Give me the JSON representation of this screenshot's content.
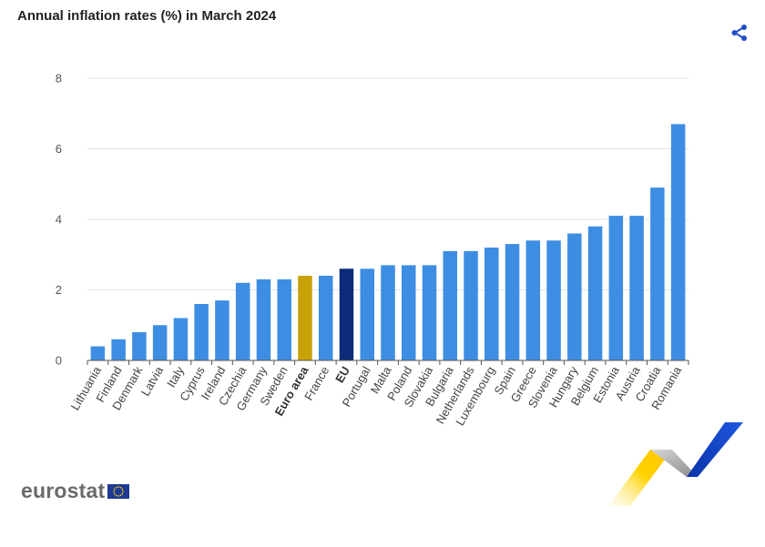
{
  "title": "Annual inflation rates (%) in March 2024",
  "icons": {
    "share": "share-icon",
    "flag": "eu-flag-icon"
  },
  "brand": {
    "logo_text": "eurostat"
  },
  "colors": {
    "default_bar": "#3d8de3",
    "euro_area_bar": "#c9a20a",
    "eu_bar": "#0c2b78",
    "grid": "#e1e4ec",
    "share_icon": "#1f4fc6"
  },
  "chart_data": {
    "type": "bar",
    "title": "Annual inflation rates (%) in March 2024",
    "xlabel": "",
    "ylabel": "",
    "ylim": [
      0,
      8
    ],
    "yticks": [
      0,
      2,
      4,
      6,
      8
    ],
    "grid": true,
    "categories": [
      "Lithuania",
      "Finland",
      "Denmark",
      "Latvia",
      "Italy",
      "Cyprus",
      "Ireland",
      "Czechia",
      "Germany",
      "Sweden",
      "Euro area",
      "France",
      "EU",
      "Portugal",
      "Malta",
      "Poland",
      "Slovakia",
      "Bulgaria",
      "Netherlands",
      "Luxembourg",
      "Spain",
      "Greece",
      "Slovenia",
      "Hungary",
      "Belgium",
      "Estonia",
      "Austria",
      "Croatia",
      "Romania"
    ],
    "values": [
      0.4,
      0.6,
      0.8,
      1.0,
      1.2,
      1.6,
      1.7,
      2.2,
      2.3,
      2.3,
      2.4,
      2.4,
      2.6,
      2.6,
      2.7,
      2.7,
      2.7,
      3.1,
      3.1,
      3.2,
      3.3,
      3.4,
      3.4,
      3.6,
      3.8,
      4.1,
      4.1,
      4.9,
      6.7
    ],
    "highlight": {
      "Euro area": "#c9a20a",
      "EU": "#0c2b78"
    },
    "bold_labels": [
      "Euro area",
      "EU"
    ]
  }
}
